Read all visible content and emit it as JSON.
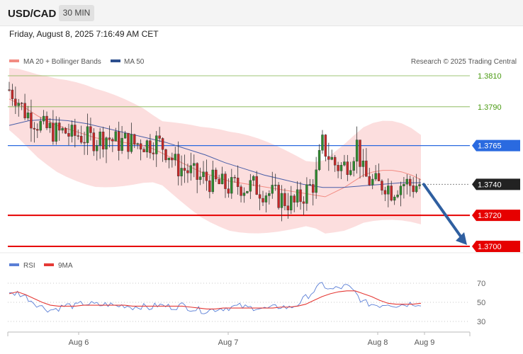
{
  "header": {
    "symbol": "USD/CAD",
    "interval": "30 MIN",
    "timestamp": "Friday, August 8, 2025 7:16:49 AM CET"
  },
  "legend": {
    "ma20": "MA 20 + Bollinger Bands",
    "ma50": "MA 50",
    "copyright": "Research © 2025 Trading Central",
    "rsi": "RSI",
    "rsi_ma": "9MA"
  },
  "colors": {
    "resistance_green": "#7fb24a",
    "pivot_blue": "#2a6ae0",
    "support_red": "#e60000",
    "candle_up": "#2e8b2e",
    "candle_down": "#c62828",
    "band_fill": "#fbd3d3",
    "ma20": "#f28b82",
    "ma50": "#4a5fa8",
    "rsi_line": "#5b7fd6",
    "rsi_ma_line": "#e53935",
    "arrow": "#2f5fa0"
  },
  "chart_data": [
    {
      "type": "candlestick",
      "title": "USD/CAD",
      "x_labels": [
        "Aug 6",
        "Aug 7",
        "Aug 8",
        "Aug 9"
      ],
      "price_range": [
        1.3692,
        1.3816
      ],
      "levels": [
        {
          "value": "1.3810",
          "kind": "resistance"
        },
        {
          "value": "1.3790",
          "kind": "resistance"
        },
        {
          "value": "1.3765",
          "kind": "pivot"
        },
        {
          "value": "1.3740",
          "kind": "current"
        },
        {
          "value": "1.3720",
          "kind": "support"
        },
        {
          "value": "1.3700",
          "kind": "support"
        }
      ],
      "close_path": [
        1.3801,
        1.3797,
        1.3788,
        1.3784,
        1.378,
        1.3776,
        1.3775,
        1.3773,
        1.3774,
        1.3771,
        1.3772,
        1.377,
        1.3769,
        1.377,
        1.3771,
        1.3768,
        1.3767,
        1.3768,
        1.3766,
        1.3767,
        1.3766,
        1.3768,
        1.3765,
        1.376,
        1.3752,
        1.375,
        1.3748,
        1.3744,
        1.3744,
        1.3742,
        1.374,
        1.3739,
        1.3738,
        1.374,
        1.3738,
        1.3739,
        1.3737,
        1.3735,
        1.3733,
        1.3731,
        1.3729,
        1.3727,
        1.3732,
        1.3737,
        1.3742,
        1.3766,
        1.3758,
        1.3752,
        1.3751,
        1.3756,
        1.3766,
        1.3745,
        1.3742,
        1.3739,
        1.3741,
        1.3736,
        1.374,
        1.3741,
        1.3739,
        1.374
      ],
      "ma20_path": [
        1.3795,
        1.3792,
        1.3788,
        1.3784,
        1.3781,
        1.3778,
        1.3776,
        1.3774,
        1.3772,
        1.377,
        1.3769,
        1.3768,
        1.3767,
        1.3766,
        1.3765,
        1.3763,
        1.376,
        1.3757,
        1.3754,
        1.3751,
        1.3748,
        1.3746,
        1.3744,
        1.3742,
        1.3741,
        1.374,
        1.3739,
        1.3738,
        1.3737,
        1.3736,
        1.3735,
        1.3734,
        1.3733,
        1.3732,
        1.3735,
        1.3738,
        1.3742,
        1.3746,
        1.3748,
        1.3749,
        1.3749,
        1.3748,
        1.3746,
        1.3743
      ],
      "ma50_path": [
        1.3778,
        1.3781,
        1.3782,
        1.3781,
        1.3779,
        1.3776,
        1.3773,
        1.377,
        1.3767,
        1.3763,
        1.3759,
        1.3754,
        1.375,
        1.3746,
        1.3743,
        1.374,
        1.3738,
        1.3738,
        1.3739,
        1.374,
        1.3741,
        1.3741
      ],
      "projection": {
        "from": "1.3740",
        "to": "1.3700"
      }
    },
    {
      "type": "line",
      "title": "RSI",
      "y_ticks": [
        "70",
        "50",
        "30"
      ],
      "ylim": [
        25,
        75
      ],
      "series": [
        {
          "name": "RSI",
          "values": [
            58,
            60,
            56,
            50,
            45,
            42,
            44,
            47,
            46,
            49,
            48,
            47,
            48,
            46,
            47,
            45,
            46,
            44,
            47,
            46,
            45,
            47,
            44,
            42,
            41,
            43,
            44,
            45,
            46,
            44,
            45,
            43,
            44,
            46,
            44,
            48,
            55,
            62,
            69,
            63,
            65,
            67,
            60,
            50,
            48,
            47,
            49,
            47,
            48,
            49,
            49
          ]
        },
        {
          "name": "9MA",
          "values": [
            59,
            61,
            58,
            54,
            50,
            47,
            46,
            46,
            46,
            47,
            47,
            47,
            47,
            47,
            47,
            46,
            46,
            46,
            46,
            46,
            46,
            46,
            45,
            44,
            43,
            43,
            44,
            44,
            44,
            44,
            44,
            44,
            44,
            45,
            45,
            46,
            48,
            52,
            56,
            59,
            61,
            62,
            62,
            59,
            56,
            52,
            49,
            48,
            48,
            48,
            49
          ]
        }
      ]
    }
  ]
}
